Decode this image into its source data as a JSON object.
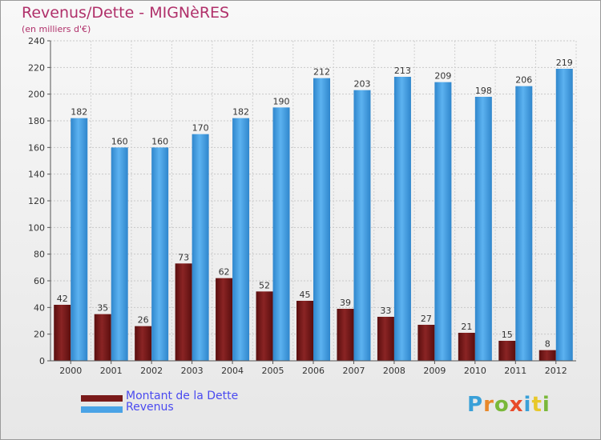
{
  "chart_data": {
    "type": "bar",
    "title": "Revenus/Dette - MIGNèRES",
    "subtitle": "(en milliers d'€)",
    "categories": [
      "2000",
      "2001",
      "2002",
      "2003",
      "2004",
      "2005",
      "2006",
      "2007",
      "2008",
      "2009",
      "2010",
      "2011",
      "2012"
    ],
    "series": [
      {
        "name": "Montant de la Dette",
        "color": "#7a1a1a",
        "values": [
          42,
          35,
          26,
          73,
          62,
          52,
          45,
          39,
          33,
          27,
          21,
          15,
          8
        ]
      },
      {
        "name": "Revenus",
        "color": "#4aa3e6",
        "values": [
          182,
          160,
          160,
          170,
          182,
          190,
          212,
          203,
          213,
          209,
          198,
          206,
          219
        ]
      }
    ],
    "ylim": [
      0,
      240
    ],
    "yticks": [
      0,
      20,
      40,
      60,
      80,
      100,
      120,
      140,
      160,
      180,
      200,
      220,
      240
    ],
    "grid": true,
    "legend_position": "bottom-left"
  },
  "logo": {
    "letters": [
      {
        "char": "P",
        "color": "#3aa0d8"
      },
      {
        "char": "r",
        "color": "#e8882a"
      },
      {
        "char": "o",
        "color": "#7ab83a"
      },
      {
        "char": "x",
        "color": "#e84a2a"
      },
      {
        "char": "i",
        "color": "#3aa0d8"
      },
      {
        "char": "t",
        "color": "#e8c82a"
      },
      {
        "char": "i",
        "color": "#7ab83a"
      }
    ]
  }
}
